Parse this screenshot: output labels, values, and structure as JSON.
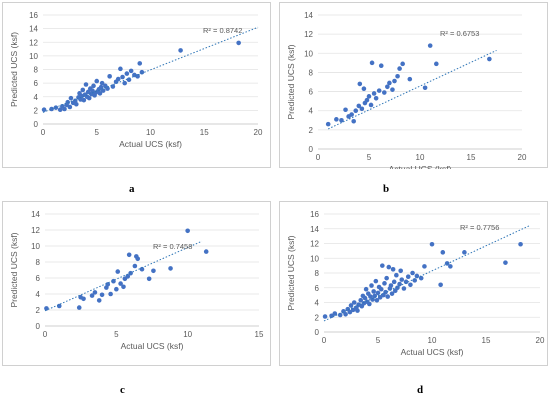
{
  "colors": {
    "point": "#4472C4",
    "trendline": "#2E75B6",
    "grid": "#e3e3e3",
    "axis": "#bfbfbf",
    "text": "#595959"
  },
  "labels": {
    "a": "a",
    "b": "b",
    "c": "c",
    "d": "d"
  },
  "chart_data": [
    {
      "id": "a",
      "type": "scatter",
      "xlabel": "Actual UCS (ksf)",
      "ylabel": "Predicted UCS (ksf)",
      "xlim": [
        0,
        20
      ],
      "ylim": [
        0,
        16
      ],
      "xticks": [
        "0",
        "5",
        "10",
        "15",
        "20"
      ],
      "yticks": [
        "0",
        "2",
        "4",
        "6",
        "8",
        "10",
        "12",
        "14",
        "16"
      ],
      "grid": "horizontal",
      "trendline": "linear",
      "trend_line": [
        [
          0,
          1.7
        ],
        [
          20,
          14.2
        ]
      ],
      "r2_label": "R² = 0.8742",
      "points": [
        [
          0.1,
          2.1
        ],
        [
          0.8,
          2.2
        ],
        [
          1.2,
          2.4
        ],
        [
          1.6,
          2.1
        ],
        [
          1.8,
          2.6
        ],
        [
          2.0,
          2.2
        ],
        [
          2.2,
          2.8
        ],
        [
          2.3,
          3.2
        ],
        [
          2.5,
          2.5
        ],
        [
          2.6,
          3.8
        ],
        [
          2.8,
          3.1
        ],
        [
          3.0,
          3.4
        ],
        [
          3.1,
          2.9
        ],
        [
          3.3,
          3.9
        ],
        [
          3.4,
          4.5
        ],
        [
          3.5,
          3.6
        ],
        [
          3.6,
          4.1
        ],
        [
          3.7,
          5.0
        ],
        [
          3.8,
          3.5
        ],
        [
          3.9,
          4.3
        ],
        [
          4.0,
          5.8
        ],
        [
          4.1,
          4.0
        ],
        [
          4.2,
          4.7
        ],
        [
          4.3,
          3.8
        ],
        [
          4.4,
          5.2
        ],
        [
          4.5,
          4.4
        ],
        [
          4.6,
          4.9
        ],
        [
          4.7,
          5.6
        ],
        [
          4.8,
          4.2
        ],
        [
          4.9,
          4.6
        ],
        [
          5.0,
          6.3
        ],
        [
          5.1,
          4.8
        ],
        [
          5.2,
          5.1
        ],
        [
          5.3,
          4.5
        ],
        [
          5.4,
          5.4
        ],
        [
          5.5,
          6.0
        ],
        [
          5.6,
          4.9
        ],
        [
          5.8,
          5.6
        ],
        [
          6.0,
          5.2
        ],
        [
          6.2,
          7.0
        ],
        [
          6.5,
          5.5
        ],
        [
          6.8,
          6.2
        ],
        [
          7.0,
          6.6
        ],
        [
          7.2,
          8.1
        ],
        [
          7.4,
          6.9
        ],
        [
          7.6,
          6.0
        ],
        [
          7.8,
          7.4
        ],
        [
          8.0,
          6.5
        ],
        [
          8.2,
          7.8
        ],
        [
          8.5,
          7.2
        ],
        [
          8.8,
          7.0
        ],
        [
          9.0,
          8.9
        ],
        [
          9.2,
          7.6
        ],
        [
          12.8,
          10.8
        ],
        [
          18.2,
          11.9
        ]
      ]
    },
    {
      "id": "b",
      "type": "scatter",
      "xlabel": "Actual UCS (ksf)",
      "ylabel": "Predicted UCS (ksf)",
      "xlim": [
        0,
        20
      ],
      "ylim": [
        0,
        14
      ],
      "xticks": [
        "0",
        "5",
        "10",
        "15",
        "20"
      ],
      "yticks": [
        "0",
        "2",
        "4",
        "6",
        "8",
        "10",
        "12",
        "14"
      ],
      "grid": "horizontal",
      "trendline": "linear",
      "trend_line": [
        [
          1,
          2.1
        ],
        [
          17.5,
          10.3
        ]
      ],
      "r2_label": "R² = 0.6753",
      "points": [
        [
          1.0,
          2.6
        ],
        [
          1.8,
          3.1
        ],
        [
          2.3,
          3.0
        ],
        [
          2.7,
          4.1
        ],
        [
          3.0,
          3.4
        ],
        [
          3.3,
          3.6
        ],
        [
          3.5,
          2.9
        ],
        [
          3.7,
          4.0
        ],
        [
          4.0,
          4.5
        ],
        [
          4.1,
          6.8
        ],
        [
          4.3,
          4.2
        ],
        [
          4.5,
          6.3
        ],
        [
          4.6,
          4.8
        ],
        [
          4.8,
          5.1
        ],
        [
          5.0,
          5.5
        ],
        [
          5.2,
          4.6
        ],
        [
          5.3,
          9.0
        ],
        [
          5.5,
          5.8
        ],
        [
          5.7,
          5.3
        ],
        [
          6.0,
          6.1
        ],
        [
          6.2,
          8.7
        ],
        [
          6.5,
          5.9
        ],
        [
          6.8,
          6.5
        ],
        [
          7.0,
          6.9
        ],
        [
          7.3,
          6.2
        ],
        [
          7.5,
          7.1
        ],
        [
          7.8,
          7.6
        ],
        [
          8.0,
          8.4
        ],
        [
          8.3,
          8.9
        ],
        [
          9.0,
          7.3
        ],
        [
          10.5,
          6.4
        ],
        [
          11.0,
          10.8
        ],
        [
          11.6,
          8.9
        ],
        [
          16.8,
          9.4
        ]
      ]
    },
    {
      "id": "c",
      "type": "scatter",
      "xlabel": "Actual UCS (ksf)",
      "ylabel": "Predicted UCS (ksf)",
      "xlim": [
        0,
        15
      ],
      "ylim": [
        0,
        14
      ],
      "xticks": [
        "0",
        "5",
        "10",
        "15"
      ],
      "yticks": [
        "0",
        "2",
        "4",
        "6",
        "8",
        "10",
        "12",
        "14"
      ],
      "grid": "horizontal",
      "trendline": "linear",
      "trend_line": [
        [
          0,
          1.9
        ],
        [
          11,
          10.6
        ]
      ],
      "r2_label": "R² = 0.7458",
      "points": [
        [
          0.1,
          2.2
        ],
        [
          1.0,
          2.5
        ],
        [
          2.4,
          2.3
        ],
        [
          2.5,
          3.6
        ],
        [
          2.7,
          3.4
        ],
        [
          3.3,
          3.8
        ],
        [
          3.5,
          4.2
        ],
        [
          3.8,
          3.2
        ],
        [
          4.0,
          3.9
        ],
        [
          4.3,
          4.8
        ],
        [
          4.4,
          5.2
        ],
        [
          4.6,
          4.0
        ],
        [
          4.8,
          5.6
        ],
        [
          5.0,
          4.6
        ],
        [
          5.1,
          6.8
        ],
        [
          5.3,
          5.3
        ],
        [
          5.5,
          4.9
        ],
        [
          5.6,
          5.9
        ],
        [
          5.8,
          6.2
        ],
        [
          5.9,
          8.9
        ],
        [
          6.0,
          6.6
        ],
        [
          6.3,
          7.5
        ],
        [
          6.4,
          8.7
        ],
        [
          6.5,
          8.4
        ],
        [
          6.8,
          7.1
        ],
        [
          7.3,
          5.9
        ],
        [
          7.6,
          6.9
        ],
        [
          8.8,
          7.2
        ],
        [
          10.0,
          11.9
        ],
        [
          11.3,
          9.3
        ]
      ]
    },
    {
      "id": "d",
      "type": "scatter",
      "xlabel": "Actual UCS  (ksf)",
      "ylabel": "Predicted UCS (ksf)",
      "xlim": [
        0,
        20
      ],
      "ylim": [
        0,
        16
      ],
      "xticks": [
        "0",
        "5",
        "10",
        "15",
        "20"
      ],
      "yticks": [
        "0",
        "2",
        "4",
        "6",
        "8",
        "10",
        "12",
        "14",
        "16"
      ],
      "grid": "horizontal",
      "trendline": "linear",
      "trend_line": [
        [
          0,
          1.5
        ],
        [
          19,
          14.4
        ]
      ],
      "r2_label": "R² = 0.7756",
      "points": [
        [
          0.1,
          2.1
        ],
        [
          0.7,
          2.2
        ],
        [
          1.0,
          2.5
        ],
        [
          1.5,
          2.3
        ],
        [
          1.8,
          2.8
        ],
        [
          2.0,
          2.4
        ],
        [
          2.2,
          3.1
        ],
        [
          2.4,
          2.7
        ],
        [
          2.5,
          3.6
        ],
        [
          2.7,
          3.0
        ],
        [
          2.8,
          4.0
        ],
        [
          3.0,
          3.3
        ],
        [
          3.1,
          2.9
        ],
        [
          3.2,
          3.7
        ],
        [
          3.4,
          4.3
        ],
        [
          3.5,
          3.5
        ],
        [
          3.6,
          4.9
        ],
        [
          3.7,
          3.9
        ],
        [
          3.8,
          4.6
        ],
        [
          3.9,
          5.8
        ],
        [
          4.0,
          4.1
        ],
        [
          4.1,
          5.2
        ],
        [
          4.2,
          3.8
        ],
        [
          4.3,
          4.8
        ],
        [
          4.4,
          6.3
        ],
        [
          4.5,
          4.4
        ],
        [
          4.6,
          5.5
        ],
        [
          4.7,
          4.9
        ],
        [
          4.8,
          6.9
        ],
        [
          4.9,
          4.3
        ],
        [
          5.0,
          5.3
        ],
        [
          5.1,
          6.1
        ],
        [
          5.2,
          4.7
        ],
        [
          5.3,
          5.8
        ],
        [
          5.4,
          9.0
        ],
        [
          5.5,
          5.0
        ],
        [
          5.6,
          6.6
        ],
        [
          5.7,
          5.4
        ],
        [
          5.8,
          7.3
        ],
        [
          5.9,
          4.8
        ],
        [
          6.0,
          8.8
        ],
        [
          6.1,
          5.9
        ],
        [
          6.2,
          6.3
        ],
        [
          6.3,
          5.2
        ],
        [
          6.4,
          8.5
        ],
        [
          6.5,
          6.8
        ],
        [
          6.6,
          5.6
        ],
        [
          6.7,
          7.7
        ],
        [
          6.8,
          6.0
        ],
        [
          7.0,
          6.5
        ],
        [
          7.1,
          8.3
        ],
        [
          7.2,
          7.1
        ],
        [
          7.4,
          5.9
        ],
        [
          7.6,
          6.8
        ],
        [
          7.8,
          7.5
        ],
        [
          8.0,
          6.4
        ],
        [
          8.2,
          8.0
        ],
        [
          8.4,
          7.0
        ],
        [
          8.6,
          7.6
        ],
        [
          9.0,
          7.3
        ],
        [
          9.3,
          8.9
        ],
        [
          10.0,
          11.9
        ],
        [
          10.8,
          6.4
        ],
        [
          11.0,
          10.8
        ],
        [
          11.4,
          9.3
        ],
        [
          11.7,
          8.9
        ],
        [
          13.0,
          10.8
        ],
        [
          16.8,
          9.4
        ],
        [
          18.2,
          11.9
        ]
      ]
    }
  ]
}
